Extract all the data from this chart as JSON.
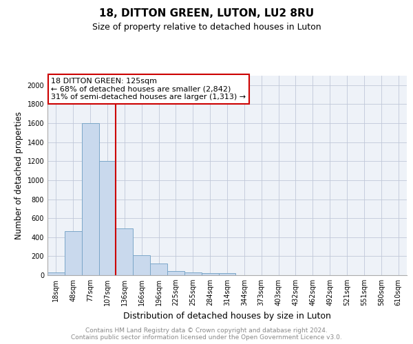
{
  "title": "18, DITTON GREEN, LUTON, LU2 8RU",
  "subtitle": "Size of property relative to detached houses in Luton",
  "xlabel": "Distribution of detached houses by size in Luton",
  "ylabel": "Number of detached properties",
  "categories": [
    "18sqm",
    "48sqm",
    "77sqm",
    "107sqm",
    "136sqm",
    "166sqm",
    "196sqm",
    "225sqm",
    "255sqm",
    "284sqm",
    "314sqm",
    "344sqm",
    "373sqm",
    "403sqm",
    "432sqm",
    "462sqm",
    "492sqm",
    "521sqm",
    "551sqm",
    "580sqm",
    "610sqm"
  ],
  "values": [
    30,
    460,
    1600,
    1200,
    490,
    210,
    125,
    45,
    30,
    20,
    20,
    0,
    0,
    0,
    0,
    0,
    0,
    0,
    0,
    0,
    0
  ],
  "bar_color": "#c9d9ed",
  "bar_edge_color": "#7aa6c8",
  "red_line_index": 4,
  "annotation_box_text": "18 DITTON GREEN: 125sqm\n← 68% of detached houses are smaller (2,842)\n31% of semi-detached houses are larger (1,313) →",
  "annotation_box_color": "#cc0000",
  "grid_color": "#c0c8d8",
  "background_color": "#eef2f8",
  "ylim": [
    0,
    2100
  ],
  "yticks": [
    0,
    200,
    400,
    600,
    800,
    1000,
    1200,
    1400,
    1600,
    1800,
    2000
  ],
  "footer_text": "Contains HM Land Registry data © Crown copyright and database right 2024.\nContains public sector information licensed under the Open Government Licence v3.0.",
  "title_fontsize": 11,
  "subtitle_fontsize": 9,
  "xlabel_fontsize": 9,
  "ylabel_fontsize": 8.5,
  "tick_fontsize": 7,
  "footer_fontsize": 6.5,
  "ann_fontsize": 8
}
